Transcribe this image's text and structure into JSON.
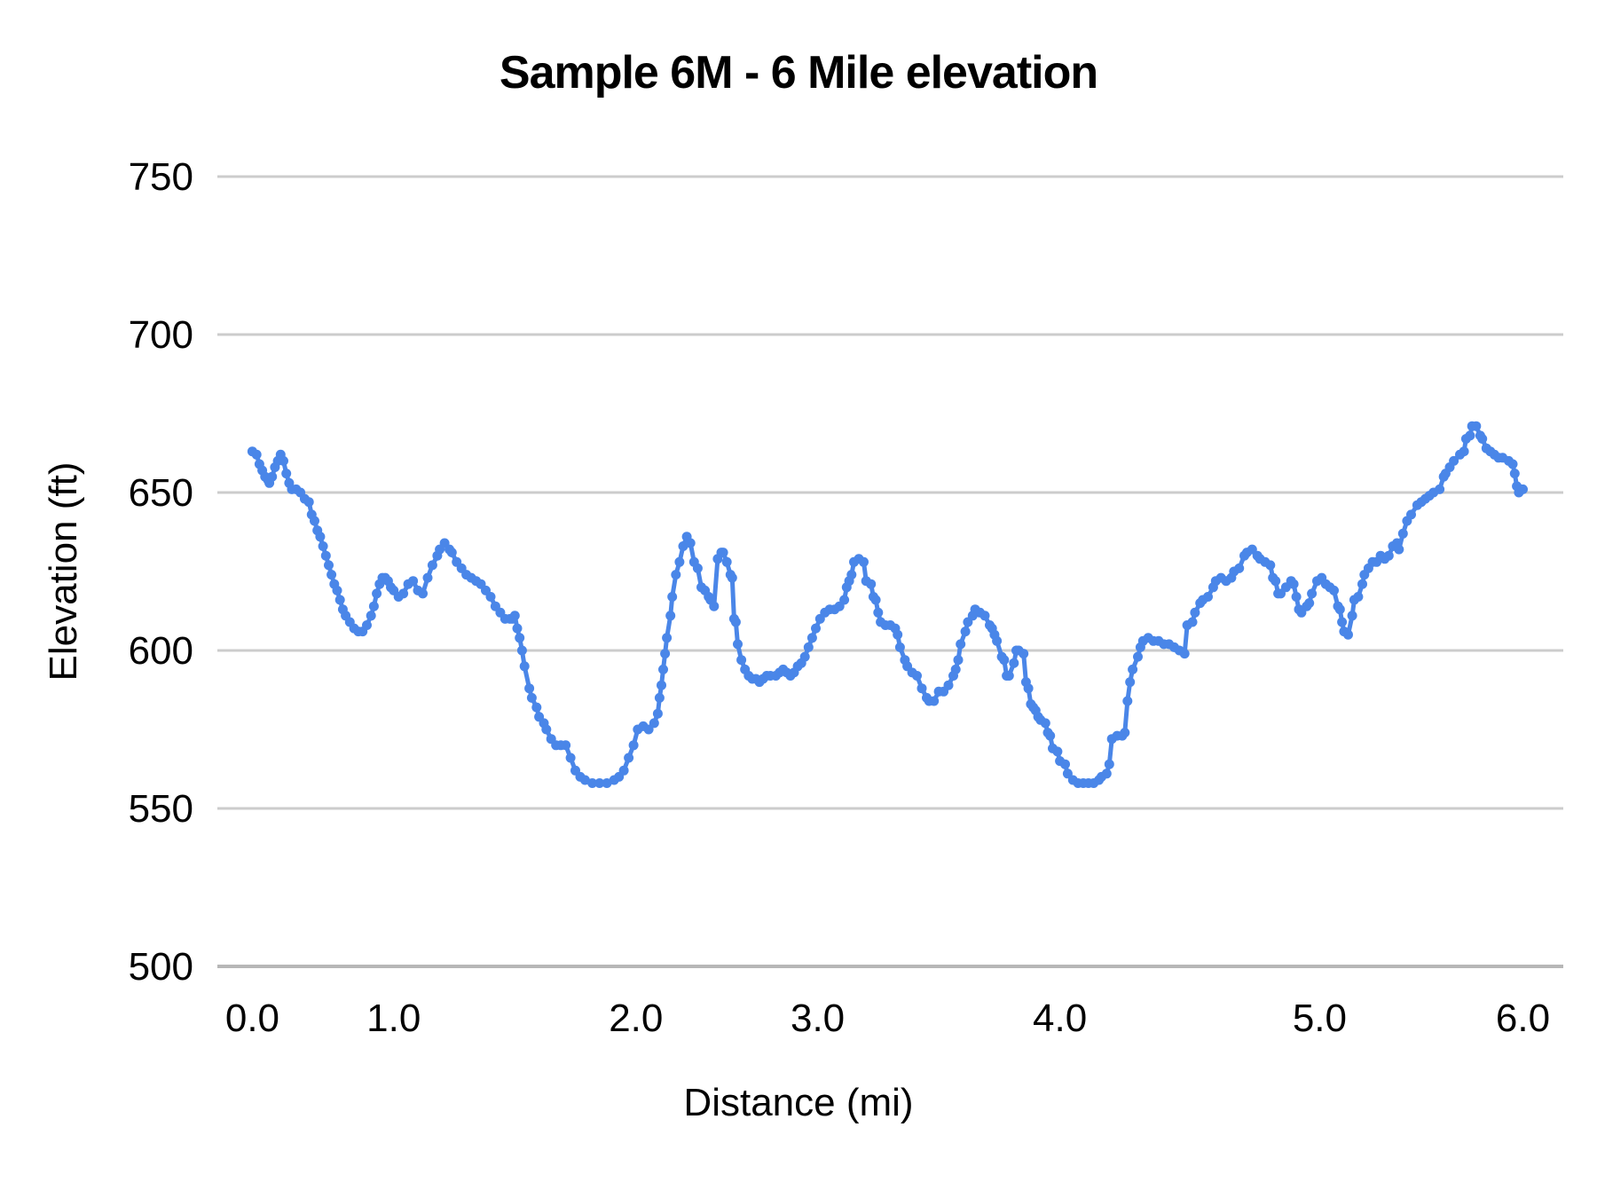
{
  "chart_data": {
    "type": "line",
    "title": "Sample 6M - 6 Mile elevation",
    "xlabel": "Distance (mi)",
    "ylabel": "Elevation (ft)",
    "ylim": [
      500,
      750
    ],
    "y_ticks": [
      750,
      700,
      650,
      600,
      550,
      500
    ],
    "x_ticks": [
      {
        "label": "0.0",
        "mi": 0,
        "pos": 0.026
      },
      {
        "label": "1.0",
        "mi": 1,
        "pos": 0.131
      },
      {
        "label": "2.0",
        "mi": 2,
        "pos": 0.311
      },
      {
        "label": "3.0",
        "mi": 3,
        "pos": 0.446
      },
      {
        "label": "4.0",
        "mi": 4,
        "pos": 0.626
      },
      {
        "label": "5.0",
        "mi": 5,
        "pos": 0.819
      },
      {
        "label": "6.0",
        "mi": 6,
        "pos": 0.97
      }
    ],
    "grid": true,
    "legend": "none",
    "series_color": "#4a86e8",
    "gridline_color": "#cccccc",
    "baseline_color": "#b7b7b7",
    "layout_note": "x tick spacing is uneven: samples are evenly spaced in sequence, mile ticks fall at mile-crossing samples",
    "points_mi_ft": [
      [
        0.0,
        663
      ],
      [
        0.03,
        662
      ],
      [
        0.05,
        659
      ],
      [
        0.07,
        657
      ],
      [
        0.09,
        655
      ],
      [
        0.11,
        654
      ],
      [
        0.12,
        653
      ],
      [
        0.14,
        655
      ],
      [
        0.16,
        658
      ],
      [
        0.18,
        660
      ],
      [
        0.2,
        662
      ],
      [
        0.22,
        660
      ],
      [
        0.24,
        656
      ],
      [
        0.26,
        653
      ],
      [
        0.28,
        651
      ],
      [
        0.31,
        651
      ],
      [
        0.34,
        650
      ],
      [
        0.37,
        648
      ],
      [
        0.4,
        647
      ],
      [
        0.42,
        643
      ],
      [
        0.44,
        641
      ],
      [
        0.46,
        638
      ],
      [
        0.48,
        636
      ],
      [
        0.5,
        633
      ],
      [
        0.52,
        630
      ],
      [
        0.54,
        627
      ],
      [
        0.56,
        624
      ],
      [
        0.58,
        621
      ],
      [
        0.6,
        619
      ],
      [
        0.62,
        616
      ],
      [
        0.64,
        613
      ],
      [
        0.66,
        611
      ],
      [
        0.69,
        609
      ],
      [
        0.72,
        607
      ],
      [
        0.75,
        606
      ],
      [
        0.78,
        606
      ],
      [
        0.81,
        608
      ],
      [
        0.84,
        611
      ],
      [
        0.86,
        614
      ],
      [
        0.88,
        618
      ],
      [
        0.9,
        621
      ],
      [
        0.92,
        623
      ],
      [
        0.94,
        623
      ],
      [
        0.96,
        622
      ],
      [
        0.98,
        620
      ],
      [
        1.0,
        619
      ],
      [
        1.02,
        617
      ],
      [
        1.04,
        618
      ],
      [
        1.06,
        621
      ],
      [
        1.08,
        622
      ],
      [
        1.1,
        619
      ],
      [
        1.12,
        618
      ],
      [
        1.14,
        623
      ],
      [
        1.16,
        627
      ],
      [
        1.18,
        630
      ],
      [
        1.19,
        632
      ],
      [
        1.21,
        634
      ],
      [
        1.23,
        632
      ],
      [
        1.24,
        631
      ],
      [
        1.26,
        628
      ],
      [
        1.28,
        626
      ],
      [
        1.3,
        624
      ],
      [
        1.32,
        623
      ],
      [
        1.34,
        622
      ],
      [
        1.36,
        621
      ],
      [
        1.38,
        619
      ],
      [
        1.4,
        617
      ],
      [
        1.42,
        614
      ],
      [
        1.44,
        612
      ],
      [
        1.46,
        610
      ],
      [
        1.48,
        610
      ],
      [
        1.49,
        610
      ],
      [
        1.5,
        611
      ],
      [
        1.51,
        607
      ],
      [
        1.52,
        604
      ],
      [
        1.53,
        600
      ],
      [
        1.54,
        595
      ],
      [
        1.56,
        588
      ],
      [
        1.57,
        585
      ],
      [
        1.59,
        582
      ],
      [
        1.6,
        579
      ],
      [
        1.62,
        577
      ],
      [
        1.63,
        575
      ],
      [
        1.65,
        572
      ],
      [
        1.67,
        570
      ],
      [
        1.69,
        570
      ],
      [
        1.71,
        570
      ],
      [
        1.73,
        566
      ],
      [
        1.75,
        562
      ],
      [
        1.77,
        560
      ],
      [
        1.79,
        559
      ],
      [
        1.82,
        558
      ],
      [
        1.85,
        558
      ],
      [
        1.88,
        558
      ],
      [
        1.91,
        559
      ],
      [
        1.93,
        560
      ],
      [
        1.95,
        562
      ],
      [
        1.97,
        566
      ],
      [
        1.99,
        570
      ],
      [
        2.01,
        575
      ],
      [
        2.04,
        576
      ],
      [
        2.07,
        575
      ],
      [
        2.1,
        577
      ],
      [
        2.12,
        580
      ],
      [
        2.13,
        585
      ],
      [
        2.14,
        589
      ],
      [
        2.15,
        594
      ],
      [
        2.16,
        599
      ],
      [
        2.17,
        604
      ],
      [
        2.19,
        611
      ],
      [
        2.2,
        617
      ],
      [
        2.22,
        624
      ],
      [
        2.24,
        628
      ],
      [
        2.26,
        633
      ],
      [
        2.28,
        636
      ],
      [
        2.3,
        634
      ],
      [
        2.32,
        628
      ],
      [
        2.34,
        626
      ],
      [
        2.36,
        620
      ],
      [
        2.38,
        619
      ],
      [
        2.4,
        617
      ],
      [
        2.41,
        616
      ],
      [
        2.43,
        614
      ],
      [
        2.45,
        629
      ],
      [
        2.47,
        631
      ],
      [
        2.48,
        631
      ],
      [
        2.5,
        628
      ],
      [
        2.52,
        624
      ],
      [
        2.53,
        623
      ],
      [
        2.54,
        610
      ],
      [
        2.55,
        609
      ],
      [
        2.56,
        602
      ],
      [
        2.58,
        597
      ],
      [
        2.6,
        594
      ],
      [
        2.62,
        592
      ],
      [
        2.64,
        591
      ],
      [
        2.66,
        591
      ],
      [
        2.68,
        590
      ],
      [
        2.7,
        591
      ],
      [
        2.72,
        592
      ],
      [
        2.74,
        592
      ],
      [
        2.77,
        592
      ],
      [
        2.79,
        593
      ],
      [
        2.81,
        594
      ],
      [
        2.83,
        593
      ],
      [
        2.85,
        592
      ],
      [
        2.87,
        593
      ],
      [
        2.89,
        595
      ],
      [
        2.91,
        596
      ],
      [
        2.93,
        598
      ],
      [
        2.95,
        601
      ],
      [
        2.97,
        604
      ],
      [
        2.99,
        607
      ],
      [
        3.01,
        610
      ],
      [
        3.03,
        612
      ],
      [
        3.05,
        613
      ],
      [
        3.07,
        613
      ],
      [
        3.09,
        614
      ],
      [
        3.11,
        616
      ],
      [
        3.12,
        620
      ],
      [
        3.13,
        622
      ],
      [
        3.14,
        624
      ],
      [
        3.15,
        628
      ],
      [
        3.17,
        629
      ],
      [
        3.19,
        628
      ],
      [
        3.2,
        622
      ],
      [
        3.22,
        621
      ],
      [
        3.23,
        617
      ],
      [
        3.24,
        616
      ],
      [
        3.25,
        612
      ],
      [
        3.26,
        609
      ],
      [
        3.28,
        608
      ],
      [
        3.3,
        608
      ],
      [
        3.32,
        607
      ],
      [
        3.33,
        605
      ],
      [
        3.34,
        601
      ],
      [
        3.36,
        597
      ],
      [
        3.37,
        595
      ],
      [
        3.39,
        593
      ],
      [
        3.41,
        592
      ],
      [
        3.43,
        588
      ],
      [
        3.45,
        585
      ],
      [
        3.46,
        584
      ],
      [
        3.48,
        584
      ],
      [
        3.5,
        587
      ],
      [
        3.52,
        587
      ],
      [
        3.54,
        589
      ],
      [
        3.56,
        592
      ],
      [
        3.57,
        594
      ],
      [
        3.58,
        597
      ],
      [
        3.59,
        602
      ],
      [
        3.61,
        606
      ],
      [
        3.62,
        609
      ],
      [
        3.64,
        611
      ],
      [
        3.65,
        613
      ],
      [
        3.67,
        612
      ],
      [
        3.69,
        611
      ],
      [
        3.71,
        608
      ],
      [
        3.72,
        607
      ],
      [
        3.73,
        605
      ],
      [
        3.74,
        603
      ],
      [
        3.76,
        598
      ],
      [
        3.77,
        597
      ],
      [
        3.78,
        592
      ],
      [
        3.79,
        592
      ],
      [
        3.81,
        596
      ],
      [
        3.82,
        600
      ],
      [
        3.83,
        600
      ],
      [
        3.85,
        599
      ],
      [
        3.86,
        590
      ],
      [
        3.87,
        588
      ],
      [
        3.88,
        583
      ],
      [
        3.89,
        582
      ],
      [
        3.9,
        581
      ],
      [
        3.91,
        579
      ],
      [
        3.92,
        578
      ],
      [
        3.94,
        577
      ],
      [
        3.95,
        574
      ],
      [
        3.96,
        573
      ],
      [
        3.97,
        569
      ],
      [
        3.99,
        568
      ],
      [
        4.0,
        565
      ],
      [
        4.02,
        564
      ],
      [
        4.03,
        561
      ],
      [
        4.05,
        559
      ],
      [
        4.07,
        558
      ],
      [
        4.09,
        558
      ],
      [
        4.11,
        558
      ],
      [
        4.13,
        558
      ],
      [
        4.15,
        559
      ],
      [
        4.16,
        560
      ],
      [
        4.18,
        561
      ],
      [
        4.19,
        564
      ],
      [
        4.2,
        572
      ],
      [
        4.22,
        573
      ],
      [
        4.24,
        573
      ],
      [
        4.25,
        574
      ],
      [
        4.26,
        584
      ],
      [
        4.27,
        590
      ],
      [
        4.28,
        594
      ],
      [
        4.3,
        598
      ],
      [
        4.31,
        601
      ],
      [
        4.32,
        603
      ],
      [
        4.34,
        604
      ],
      [
        4.36,
        603
      ],
      [
        4.38,
        603
      ],
      [
        4.4,
        602
      ],
      [
        4.42,
        602
      ],
      [
        4.44,
        601
      ],
      [
        4.46,
        600
      ],
      [
        4.48,
        599
      ],
      [
        4.49,
        608
      ],
      [
        4.51,
        609
      ],
      [
        4.52,
        612
      ],
      [
        4.54,
        615
      ],
      [
        4.55,
        616
      ],
      [
        4.57,
        617
      ],
      [
        4.59,
        620
      ],
      [
        4.6,
        622
      ],
      [
        4.62,
        623
      ],
      [
        4.64,
        622
      ],
      [
        4.66,
        623
      ],
      [
        4.67,
        625
      ],
      [
        4.69,
        626
      ],
      [
        4.71,
        630
      ],
      [
        4.72,
        631
      ],
      [
        4.74,
        632
      ],
      [
        4.76,
        630
      ],
      [
        4.77,
        629
      ],
      [
        4.79,
        628
      ],
      [
        4.81,
        627
      ],
      [
        4.82,
        623
      ],
      [
        4.83,
        622
      ],
      [
        4.84,
        618
      ],
      [
        4.85,
        618
      ],
      [
        4.87,
        620
      ],
      [
        4.89,
        622
      ],
      [
        4.9,
        621
      ],
      [
        4.91,
        617
      ],
      [
        4.92,
        613
      ],
      [
        4.93,
        612
      ],
      [
        4.95,
        614
      ],
      [
        4.96,
        615
      ],
      [
        4.97,
        618
      ],
      [
        4.99,
        622
      ],
      [
        5.01,
        623
      ],
      [
        5.03,
        621
      ],
      [
        5.05,
        620
      ],
      [
        5.07,
        619
      ],
      [
        5.09,
        614
      ],
      [
        5.1,
        613
      ],
      [
        5.11,
        609
      ],
      [
        5.12,
        606
      ],
      [
        5.14,
        605
      ],
      [
        5.16,
        611
      ],
      [
        5.17,
        616
      ],
      [
        5.19,
        617
      ],
      [
        5.21,
        621
      ],
      [
        5.22,
        624
      ],
      [
        5.24,
        626
      ],
      [
        5.26,
        628
      ],
      [
        5.28,
        628
      ],
      [
        5.3,
        630
      ],
      [
        5.32,
        629
      ],
      [
        5.34,
        630
      ],
      [
        5.36,
        633
      ],
      [
        5.38,
        634
      ],
      [
        5.39,
        632
      ],
      [
        5.41,
        637
      ],
      [
        5.43,
        641
      ],
      [
        5.45,
        643
      ],
      [
        5.48,
        646
      ],
      [
        5.5,
        647
      ],
      [
        5.52,
        648
      ],
      [
        5.54,
        649
      ],
      [
        5.56,
        650
      ],
      [
        5.59,
        651
      ],
      [
        5.61,
        655
      ],
      [
        5.62,
        656
      ],
      [
        5.64,
        658
      ],
      [
        5.66,
        660
      ],
      [
        5.69,
        662
      ],
      [
        5.71,
        663
      ],
      [
        5.72,
        667
      ],
      [
        5.74,
        668
      ],
      [
        5.75,
        671
      ],
      [
        5.77,
        671
      ],
      [
        5.79,
        668
      ],
      [
        5.8,
        667
      ],
      [
        5.82,
        664
      ],
      [
        5.84,
        663
      ],
      [
        5.86,
        662
      ],
      [
        5.88,
        661
      ],
      [
        5.9,
        661
      ],
      [
        5.93,
        660
      ],
      [
        5.95,
        659
      ],
      [
        5.96,
        656
      ],
      [
        5.97,
        652
      ],
      [
        5.98,
        650
      ],
      [
        5.99,
        651
      ],
      [
        6.0,
        651
      ]
    ]
  }
}
